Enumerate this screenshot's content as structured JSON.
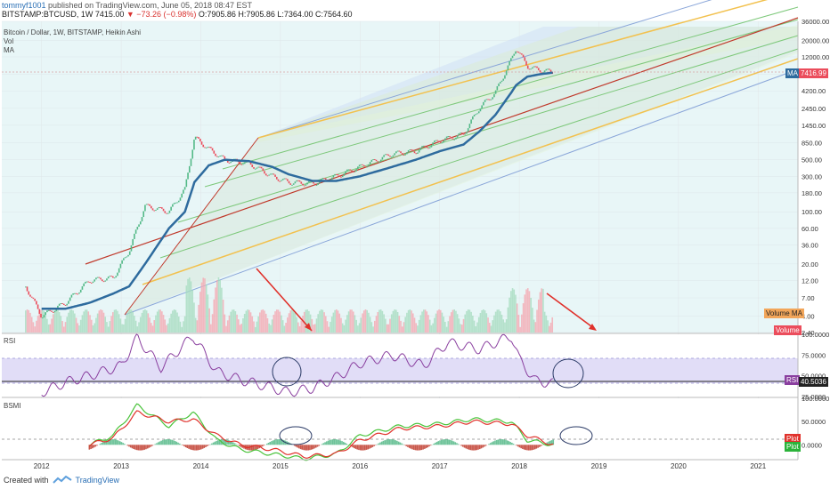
{
  "header": {
    "publish_user": "tommyf1001",
    "publish_text": " published on TradingView.com, June 05, 2018 08:47 EST",
    "symbol_line_a": "BITSTAMP:BTCUSD, 1W  7415.00 ",
    "symbol_change": "▼ −73.26 (−0.98%)",
    "symbol_line_b": " O:7905.86 H:7905.86 L:7364.00 C:7564.60"
  },
  "legend": {
    "title": "Bitcoin / Dollar, 1W, BITSTAMP, Heikin Ashi",
    "vol": "Vol",
    "ma": "MA"
  },
  "panels": {
    "rsi_label": "RSI",
    "bsmi_label": "BSMI"
  },
  "price_axis": {
    "ticks": [
      "36000.00",
      "20000.00",
      "12000.00",
      "7000.00",
      "4200.00",
      "2450.00",
      "1450.00",
      "850.00",
      "500.00",
      "300.00",
      "180.00",
      "100.00",
      "60.00",
      "36.00",
      "20.00",
      "12.00",
      "7.00",
      "4.00",
      "2.40"
    ],
    "tags": {
      "ma": "MA",
      "last": "7416.99",
      "volume_ma": "Volume MA",
      "volume": "Volume"
    }
  },
  "rsi_axis": {
    "ticks": [
      "100.0000",
      "75.0000",
      "50.0000",
      "25.0000"
    ],
    "tags": {
      "rsi": "RSI",
      "value": "40.5036"
    }
  },
  "bsmi_axis": {
    "ticks": [
      "100.0000",
      "50.0000",
      "0.0000"
    ],
    "tags": {
      "plot1": "Plot",
      "plot2": "Plot"
    }
  },
  "time_axis": {
    "labels": [
      "2012",
      "2013",
      "2014",
      "2015",
      "2016",
      "2017",
      "2018",
      "2019",
      "2020",
      "2021"
    ]
  },
  "footer": {
    "created_with": "Created with",
    "brand": "TradingView"
  },
  "colors": {
    "candle_up": "#53b987",
    "candle_down": "#eb4d5c",
    "ma_line": "#2e6b9e",
    "rsi_line": "#8a3f9f",
    "rsi_band": "#d9d5f5",
    "arrow": "#e0312b",
    "channel_red": "#c0392b",
    "channel_yellow": "#f2c14e",
    "channel_green": "#7dc87a",
    "channel_blue": "#8aa6d9"
  },
  "chart_data": [
    {
      "type": "line",
      "title": "Bitcoin / Dollar, 1W, BITSTAMP, Heikin Ashi",
      "log_scale": true,
      "x": [
        2011.8,
        2012.0,
        2012.3,
        2012.6,
        2012.9,
        2013.1,
        2013.3,
        2013.6,
        2013.8,
        2013.92,
        2014.1,
        2014.3,
        2014.6,
        2014.9,
        2015.1,
        2015.4,
        2015.7,
        2016.0,
        2016.4,
        2016.7,
        2017.0,
        2017.3,
        2017.5,
        2017.7,
        2017.9,
        2017.96,
        2018.1,
        2018.25,
        2018.43
      ],
      "series": [
        {
          "values": [
            10,
            4,
            6,
            12,
            13,
            30,
            120,
            100,
            200,
            1000,
            700,
            500,
            450,
            300,
            250,
            240,
            300,
            400,
            600,
            650,
            900,
            1100,
            2500,
            4000,
            11000,
            16000,
            9000,
            8000,
            7500
          ]
        },
        {
          "values": [
            5,
            5,
            5,
            6,
            8,
            10,
            20,
            60,
            100,
            250,
            420,
            500,
            480,
            400,
            320,
            260,
            260,
            300,
            400,
            500,
            650,
            800,
            1200,
            2000,
            4000,
            5000,
            6500,
            7000,
            7400
          ]
        }
      ],
      "ylim": [
        2.4,
        36000
      ],
      "xlim": [
        2011.5,
        2021.5
      ]
    },
    {
      "type": "line",
      "title": "RSI",
      "x": [
        2012.0,
        2012.3,
        2012.6,
        2013.0,
        2013.2,
        2013.5,
        2013.9,
        2014.2,
        2014.5,
        2014.8,
        2015.1,
        2015.4,
        2015.7,
        2016.0,
        2016.4,
        2016.8,
        2017.1,
        2017.5,
        2017.9,
        2018.0,
        2018.2,
        2018.43
      ],
      "values": [
        30,
        42,
        50,
        62,
        96,
        60,
        98,
        55,
        45,
        38,
        30,
        35,
        48,
        65,
        75,
        62,
        90,
        82,
        98,
        70,
        44,
        40.5
      ],
      "ylim": [
        25,
        100
      ]
    },
    {
      "type": "line",
      "title": "BSMI",
      "x": [
        2012.6,
        2012.9,
        2013.2,
        2013.6,
        2013.9,
        2014.2,
        2014.5,
        2014.9,
        2015.3,
        2015.7,
        2016.0,
        2016.5,
        2017.0,
        2017.4,
        2017.9,
        2018.1,
        2018.43
      ],
      "series": [
        {
          "values": [
            0,
            20,
            85,
            40,
            70,
            10,
            -10,
            -20,
            -30,
            -20,
            20,
            40,
            45,
            55,
            50,
            10,
            0
          ]
        },
        {
          "values": [
            0,
            15,
            70,
            50,
            55,
            20,
            0,
            -10,
            -25,
            -20,
            10,
            35,
            40,
            50,
            45,
            20,
            0
          ]
        }
      ],
      "ylim": [
        -30,
        100
      ]
    }
  ]
}
